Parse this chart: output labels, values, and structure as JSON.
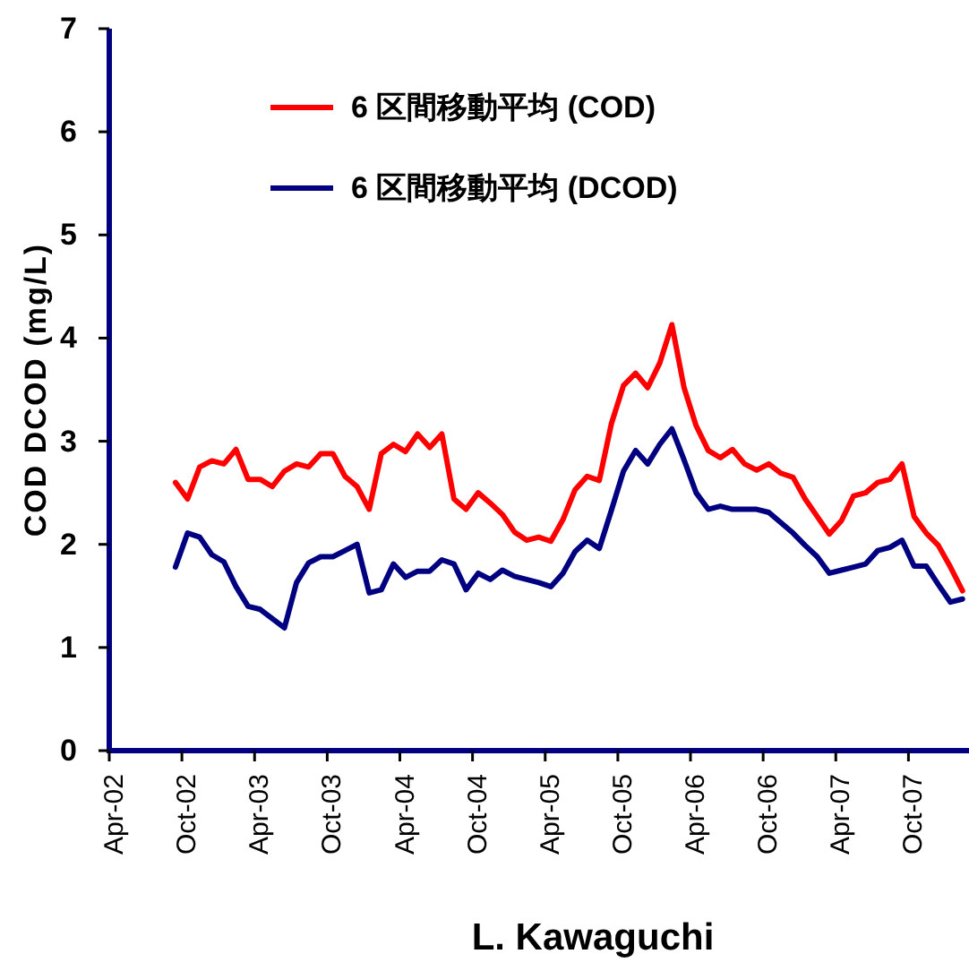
{
  "chart_data": {
    "type": "line",
    "xlabel": "L. Kawaguchi",
    "ylabel": "COD DCOD (mg/L)",
    "x": [
      "2002-09-15",
      "2002-10-15",
      "2002-11-15",
      "2002-12-15",
      "2003-01-15",
      "2003-02-15",
      "2003-03-15",
      "2003-04-15",
      "2003-05-15",
      "2003-06-15",
      "2003-07-15",
      "2003-08-15",
      "2003-09-15",
      "2003-10-15",
      "2003-11-15",
      "2003-12-15",
      "2004-01-15",
      "2004-02-15",
      "2004-03-15",
      "2004-04-15",
      "2004-05-15",
      "2004-06-15",
      "2004-07-15",
      "2004-08-15",
      "2004-09-15",
      "2004-10-15",
      "2004-11-15",
      "2004-12-15",
      "2005-01-15",
      "2005-02-15",
      "2005-03-15",
      "2005-04-15",
      "2005-05-15",
      "2005-06-15",
      "2005-07-15",
      "2005-08-15",
      "2005-09-15",
      "2005-10-15",
      "2005-11-15",
      "2005-12-15",
      "2006-01-15",
      "2006-02-15",
      "2006-03-15",
      "2006-04-15",
      "2006-05-15",
      "2006-06-15",
      "2006-07-15",
      "2006-08-15",
      "2006-09-15",
      "2006-10-15",
      "2006-11-15",
      "2006-12-15",
      "2007-01-15",
      "2007-02-15",
      "2007-03-15",
      "2007-04-15",
      "2007-05-15",
      "2007-06-15",
      "2007-07-15",
      "2007-08-15",
      "2007-09-15",
      "2007-10-15",
      "2007-11-15",
      "2007-12-15",
      "2008-01-15",
      "2008-02-15"
    ],
    "series": [
      {
        "name": "6 区間移動平均 (COD)",
        "color": "#ff0000",
        "values": [
          2.6,
          2.44,
          2.75,
          2.81,
          2.78,
          2.92,
          2.63,
          2.63,
          2.56,
          2.71,
          2.78,
          2.75,
          2.88,
          2.88,
          2.66,
          2.56,
          2.34,
          2.88,
          2.97,
          2.9,
          3.07,
          2.94,
          3.07,
          2.44,
          2.34,
          2.5,
          2.4,
          2.29,
          2.12,
          2.04,
          2.07,
          2.03,
          2.24,
          2.53,
          2.66,
          2.62,
          3.17,
          3.54,
          3.66,
          3.52,
          3.76,
          4.13,
          3.52,
          3.15,
          2.91,
          2.84,
          2.92,
          2.78,
          2.72,
          2.78,
          2.69,
          2.65,
          2.44,
          2.27,
          2.1,
          2.23,
          2.47,
          2.5,
          2.6,
          2.63,
          2.78,
          2.27,
          2.11,
          1.99,
          1.78,
          1.55
        ]
      },
      {
        "name": "6 区間移動平均 (DCOD)",
        "color": "#000080",
        "values": [
          1.78,
          2.11,
          2.07,
          1.9,
          1.83,
          1.59,
          1.4,
          1.37,
          1.28,
          1.19,
          1.63,
          1.82,
          1.88,
          1.88,
          1.94,
          2.0,
          1.53,
          1.56,
          1.81,
          1.68,
          1.74,
          1.74,
          1.85,
          1.81,
          1.56,
          1.72,
          1.66,
          1.75,
          1.69,
          1.66,
          1.63,
          1.59,
          1.72,
          1.93,
          2.04,
          1.96,
          2.33,
          2.71,
          2.91,
          2.78,
          2.97,
          3.12,
          2.82,
          2.5,
          2.34,
          2.37,
          2.34,
          2.34,
          2.34,
          2.31,
          2.21,
          2.11,
          1.99,
          1.88,
          1.72,
          1.75,
          1.78,
          1.81,
          1.94,
          1.97,
          2.04,
          1.79,
          1.79,
          1.61,
          1.44,
          1.47
        ]
      }
    ],
    "xlim": [
      "2002-04",
      "2008-03"
    ],
    "xticks": [
      {
        "value": "2002-04",
        "label": "Apr-02"
      },
      {
        "value": "2002-10",
        "label": "Oct-02"
      },
      {
        "value": "2003-04",
        "label": "Apr-03"
      },
      {
        "value": "2003-10",
        "label": "Oct-03"
      },
      {
        "value": "2004-04",
        "label": "Apr-04"
      },
      {
        "value": "2004-10",
        "label": "Oct-04"
      },
      {
        "value": "2005-04",
        "label": "Apr-05"
      },
      {
        "value": "2005-10",
        "label": "Oct-05"
      },
      {
        "value": "2006-04",
        "label": "Apr-06"
      },
      {
        "value": "2006-10",
        "label": "Oct-06"
      },
      {
        "value": "2007-04",
        "label": "Apr-07"
      },
      {
        "value": "2007-10",
        "label": "Oct-07"
      }
    ],
    "ylim": [
      0,
      7
    ],
    "yticks": [
      0,
      1,
      2,
      3,
      4,
      5,
      6,
      7
    ],
    "grid": false,
    "legend": "top left",
    "marker": "none",
    "line_style": "solid"
  }
}
